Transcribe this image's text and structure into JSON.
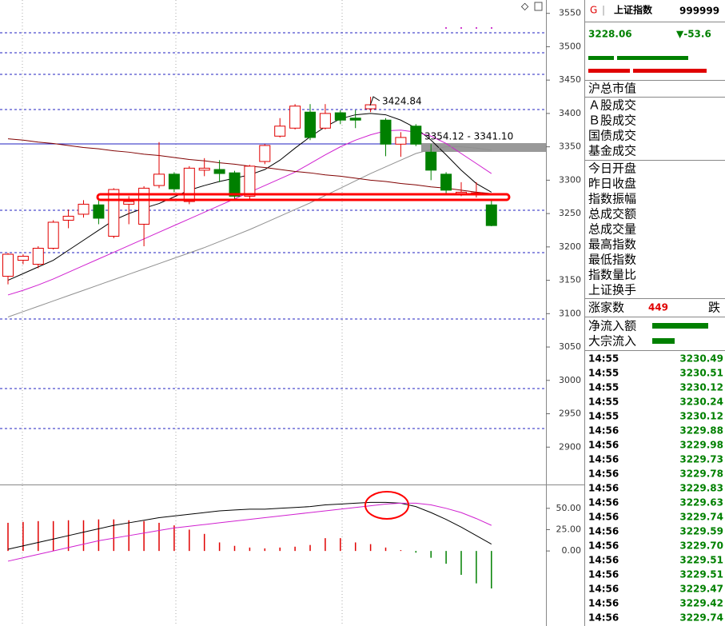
{
  "chart_data": [
    {
      "type": "candlestick",
      "open": [
        3156,
        3180,
        3174,
        3198,
        3240,
        3249,
        3263,
        3216,
        3264,
        3234,
        3292,
        3309,
        3268,
        3315,
        3316,
        3311,
        3276,
        3328,
        3366,
        3378,
        3402,
        3378,
        3401,
        3393,
        3407,
        3390,
        3354,
        3381,
        3342,
        3309,
        3279,
        3279,
        3263
      ],
      "high": [
        3191,
        3189,
        3201,
        3240,
        3256,
        3270,
        3270,
        3288,
        3276,
        3291,
        3357,
        3312,
        3321,
        3333,
        3330,
        3314,
        3323,
        3354,
        3393,
        3414,
        3414,
        3414,
        3405,
        3405,
        3425,
        3393,
        3372,
        3384,
        3354,
        3312,
        3297,
        3297,
        3270
      ],
      "low": [
        3144,
        3174,
        3168,
        3196,
        3228,
        3244,
        3234,
        3213,
        3234,
        3201,
        3288,
        3282,
        3264,
        3306,
        3297,
        3270,
        3270,
        3324,
        3364,
        3376,
        3360,
        3376,
        3384,
        3378,
        3402,
        3336,
        3335,
        3351,
        3300,
        3280,
        3276,
        3274,
        3231
      ],
      "close": [
        3189,
        3186,
        3198,
        3237,
        3246,
        3264,
        3243,
        3286,
        3268,
        3288,
        3309,
        3287,
        3318,
        3318,
        3310,
        3276,
        3321,
        3352,
        3381,
        3411,
        3364,
        3400,
        3390,
        3390,
        3413,
        3354,
        3364,
        3354,
        3315,
        3285,
        3282,
        3281,
        3232
      ],
      "up_color": "#e00000",
      "down_color": "#008000",
      "series": [
        {
          "color": "#000000",
          "values": [
            3150,
            3160,
            3170,
            3180,
            3195,
            3210,
            3225,
            3240,
            3250,
            3258,
            3265,
            3275,
            3285,
            3292,
            3298,
            3303,
            3308,
            3316,
            3330,
            3348,
            3365,
            3380,
            3392,
            3398,
            3400,
            3398,
            3390,
            3378,
            3360,
            3338,
            3315,
            3295,
            3282
          ]
        },
        {
          "color": "#d020d0",
          "values": [
            3128,
            3135,
            3143,
            3152,
            3162,
            3172,
            3182,
            3192,
            3202,
            3212,
            3222,
            3232,
            3242,
            3252,
            3262,
            3272,
            3282,
            3292,
            3302,
            3312,
            3325,
            3338,
            3350,
            3360,
            3368,
            3374,
            3375,
            3372,
            3366,
            3355,
            3340,
            3325,
            3310
          ]
        },
        {
          "color": "#909090",
          "values": [
            3095,
            3103,
            3111,
            3119,
            3127,
            3135,
            3143,
            3151,
            3159,
            3167,
            3175,
            3183,
            3191,
            3199,
            3208,
            3217,
            3226,
            3236,
            3246,
            3256,
            3266,
            3277,
            3288,
            3299,
            3310,
            3320,
            3330,
            3340,
            3346,
            3350,
            3350,
            3348,
            3345
          ]
        },
        {
          "color": "#800000",
          "values": [
            3362,
            3360,
            3357,
            3355,
            3352,
            3349,
            3347,
            3344,
            3342,
            3339,
            3337,
            3334,
            3331,
            3329,
            3326,
            3324,
            3321,
            3319,
            3316,
            3313,
            3311,
            3308,
            3306,
            3303,
            3300,
            3298,
            3295,
            3293,
            3290,
            3288,
            3285,
            3282,
            3280
          ]
        }
      ],
      "annotations": [
        "3424.84",
        "3354.12 - 3341.10"
      ],
      "ylim": [
        2844,
        3570
      ],
      "yticks": [
        3550,
        3500,
        3450,
        3400,
        3350,
        3300,
        3250,
        3200,
        3150,
        3100,
        3050,
        3000,
        2950,
        2900
      ]
    },
    {
      "type": "bar",
      "values": [
        33,
        34,
        35,
        35,
        36,
        36,
        37,
        37,
        36,
        35,
        33,
        30,
        25,
        20,
        10,
        6,
        4,
        3,
        4,
        5,
        7,
        15,
        15,
        10,
        8,
        4,
        1,
        -2,
        -8,
        -15,
        -28,
        -38,
        -44
      ],
      "up_color": "#e00000",
      "down_color": "#008000",
      "series": [
        {
          "color": "#000000",
          "values": [
            2,
            6,
            10,
            14,
            18,
            22,
            26,
            30,
            33,
            36,
            39,
            41,
            43,
            45,
            47,
            48,
            49,
            49,
            50,
            51,
            52,
            54,
            55,
            56,
            57,
            57,
            56,
            52,
            45,
            37,
            28,
            18,
            8
          ]
        },
        {
          "color": "#d020d0",
          "values": [
            -12,
            -8,
            -4,
            0,
            4,
            8,
            12,
            15,
            18,
            21,
            24,
            27,
            29,
            31,
            33,
            35,
            37,
            39,
            41,
            43,
            45,
            47,
            49,
            51,
            53,
            55,
            56,
            56,
            54,
            50,
            45,
            38,
            30
          ]
        }
      ],
      "ylim": [
        -88,
        77
      ],
      "yticks": [
        {
          "value": 50,
          "label": "50.00"
        },
        {
          "value": 25,
          "label": "25.00"
        },
        {
          "value": 0,
          "label": "0.00"
        }
      ]
    }
  ],
  "quote_panel": {
    "badge": "G",
    "name": "上证指数",
    "code": "999999",
    "price": "3228.06",
    "change": "▼-53.6",
    "labels_a": [
      "沪总市值"
    ],
    "labels_b": [
      "Ａ股成交",
      "Ｂ股成交",
      "国债成交",
      "基金成交"
    ],
    "labels_c": [
      "今日开盘",
      "昨日收盘",
      "指数振幅",
      "总成交额",
      "总成交量",
      "最高指数",
      "最低指数",
      "指数量比",
      "上证换手"
    ],
    "advance_label": "涨家数",
    "advance_count": "449",
    "decline_label": "跌",
    "flow_labels": [
      "净流入额",
      "大宗流入"
    ],
    "ticks": [
      [
        "14:55",
        "3230.49"
      ],
      [
        "14:55",
        "3230.51"
      ],
      [
        "14:55",
        "3230.12"
      ],
      [
        "14:55",
        "3230.24"
      ],
      [
        "14:55",
        "3230.12"
      ],
      [
        "14:56",
        "3229.88"
      ],
      [
        "14:56",
        "3229.98"
      ],
      [
        "14:56",
        "3229.73"
      ],
      [
        "14:56",
        "3229.78"
      ],
      [
        "14:56",
        "3229.83"
      ],
      [
        "14:56",
        "3229.63"
      ],
      [
        "14:56",
        "3229.74"
      ],
      [
        "14:56",
        "3229.59"
      ],
      [
        "14:56",
        "3229.70"
      ],
      [
        "14:56",
        "3229.51"
      ],
      [
        "14:56",
        "3229.51"
      ],
      [
        "14:56",
        "3229.47"
      ],
      [
        "14:56",
        "3229.42"
      ],
      [
        "14:56",
        "3229.74"
      ]
    ]
  }
}
